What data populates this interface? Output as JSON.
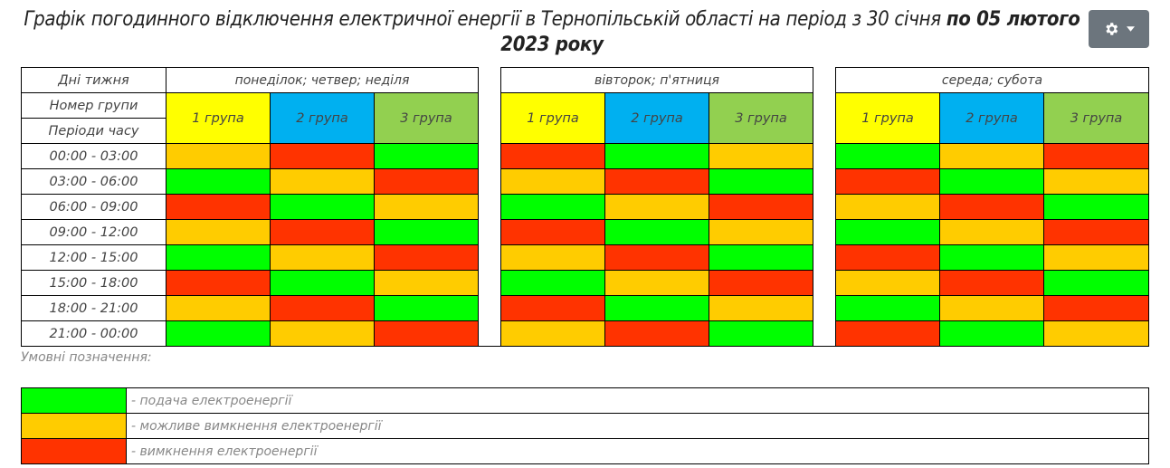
{
  "title": {
    "part1": "Графік погодинного відключення електричної енергії  в Тернопільській області на період з 30 січня ",
    "part2_bold": "по 05 лютого 2023 року"
  },
  "settings_button": {
    "icon": "gear-icon",
    "caret": "chevron-down-icon"
  },
  "colors": {
    "on": "#00ff00",
    "maybe": "#ffcc00",
    "off": "#ff3300",
    "group1": "#ffff00",
    "group2": "#00b0f0",
    "group3": "#92d050"
  },
  "header": {
    "days_label": "Дні тижня",
    "group_label": "Номер групи",
    "periods_label": "Періоди часу",
    "day_sets": [
      "понеділок; четвер; неділя",
      "вівторок; п'ятниця",
      "середа; субота"
    ],
    "groups": [
      "1 група",
      "2 група",
      "3 група"
    ]
  },
  "periods": [
    "00:00 - 03:00",
    "03:00 - 06:00",
    "06:00 - 09:00",
    "09:00 - 12:00",
    "12:00 - 15:00",
    "15:00 - 18:00",
    "18:00 - 21:00",
    "21:00 - 00:00"
  ],
  "schedule": [
    {
      "day_set": "понеділок; четвер; неділя",
      "rows": [
        [
          "maybe",
          "off",
          "on"
        ],
        [
          "on",
          "maybe",
          "off"
        ],
        [
          "off",
          "on",
          "maybe"
        ],
        [
          "maybe",
          "off",
          "on"
        ],
        [
          "on",
          "maybe",
          "off"
        ],
        [
          "off",
          "on",
          "maybe"
        ],
        [
          "maybe",
          "off",
          "on"
        ],
        [
          "on",
          "maybe",
          "off"
        ]
      ]
    },
    {
      "day_set": "вівторок; п'ятниця",
      "rows": [
        [
          "off",
          "on",
          "maybe"
        ],
        [
          "maybe",
          "off",
          "on"
        ],
        [
          "on",
          "maybe",
          "off"
        ],
        [
          "off",
          "on",
          "maybe"
        ],
        [
          "maybe",
          "off",
          "on"
        ],
        [
          "on",
          "maybe",
          "off"
        ],
        [
          "off",
          "on",
          "maybe"
        ],
        [
          "maybe",
          "off",
          "on"
        ]
      ]
    },
    {
      "day_set": "середа; субота",
      "rows": [
        [
          "on",
          "maybe",
          "off"
        ],
        [
          "off",
          "on",
          "maybe"
        ],
        [
          "maybe",
          "off",
          "on"
        ],
        [
          "on",
          "maybe",
          "off"
        ],
        [
          "off",
          "on",
          "maybe"
        ],
        [
          "maybe",
          "off",
          "on"
        ],
        [
          "on",
          "maybe",
          "off"
        ],
        [
          "off",
          "on",
          "maybe"
        ]
      ]
    }
  ],
  "legend": {
    "caption": "Умовні позначення:",
    "items": [
      {
        "status": "on",
        "label": "- подача електроенергії"
      },
      {
        "status": "maybe",
        "label": "- можливе вимкнення електроенергії"
      },
      {
        "status": "off",
        "label": "- вимкнення електроенергії"
      }
    ]
  }
}
